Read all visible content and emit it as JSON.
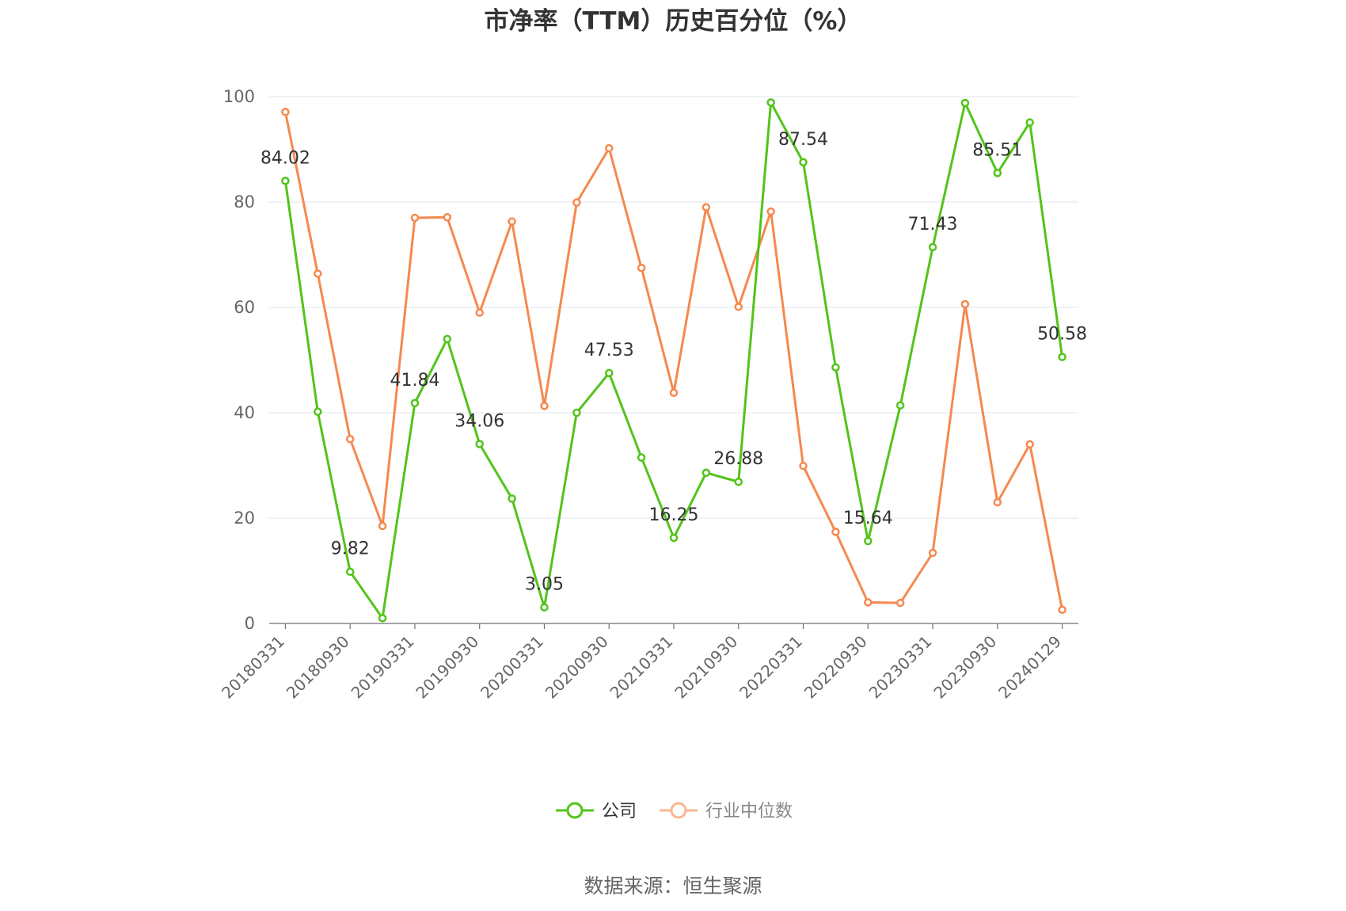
{
  "chart_data": {
    "type": "line",
    "title": "市净率（TTM）历史百分位（%）",
    "source": "数据来源：恒生聚源",
    "ylim": [
      0,
      100
    ],
    "yticks": [
      0,
      20,
      40,
      60,
      80,
      100
    ],
    "grid": true,
    "legend_position": "bottom-center",
    "x": [
      "20180331",
      "20180630",
      "20180930",
      "20181231",
      "20190331",
      "20190630",
      "20190930",
      "20191231",
      "20200331",
      "20200630",
      "20200930",
      "20201231",
      "20210331",
      "20210630",
      "20210930",
      "20211231",
      "20220331",
      "20220630",
      "20220930",
      "20221231",
      "20230331",
      "20230630",
      "20230930",
      "20231231",
      "20240129"
    ],
    "x_tick_labels": [
      "20180331",
      "20180930",
      "20190331",
      "20190930",
      "20200331",
      "20200930",
      "20210331",
      "20210930",
      "20220331",
      "20220930",
      "20230331",
      "20230930",
      "20240129"
    ],
    "series": [
      {
        "name": "公司",
        "color": "#52c41a",
        "values": [
          84.02,
          40.2,
          9.82,
          1.0,
          41.84,
          54.0,
          34.06,
          23.7,
          3.05,
          40.0,
          47.53,
          31.5,
          16.25,
          28.6,
          26.88,
          98.9,
          87.54,
          48.6,
          15.64,
          41.4,
          71.43,
          98.8,
          85.51,
          95.1,
          50.58
        ],
        "labeled_values": [
          {
            "index": 0,
            "text": "84.02"
          },
          {
            "index": 2,
            "text": "9.82"
          },
          {
            "index": 4,
            "text": "41.84"
          },
          {
            "index": 6,
            "text": "34.06"
          },
          {
            "index": 8,
            "text": "3.05"
          },
          {
            "index": 10,
            "text": "47.53"
          },
          {
            "index": 12,
            "text": "16.25"
          },
          {
            "index": 14,
            "text": "26.88"
          },
          {
            "index": 16,
            "text": "87.54"
          },
          {
            "index": 18,
            "text": "15.64"
          },
          {
            "index": 20,
            "text": "71.43"
          },
          {
            "index": 22,
            "text": "85.51"
          },
          {
            "index": 24,
            "text": "50.58"
          }
        ]
      },
      {
        "name": "行业中位数",
        "color": "#f5894f",
        "values": [
          97.1,
          66.4,
          35.0,
          18.5,
          77.0,
          77.1,
          59.0,
          76.3,
          41.3,
          79.9,
          90.2,
          67.5,
          43.8,
          79.0,
          60.1,
          78.2,
          29.9,
          17.4,
          4.0,
          3.9,
          13.4,
          60.6,
          23.0,
          34.0,
          2.6
        ]
      }
    ]
  }
}
